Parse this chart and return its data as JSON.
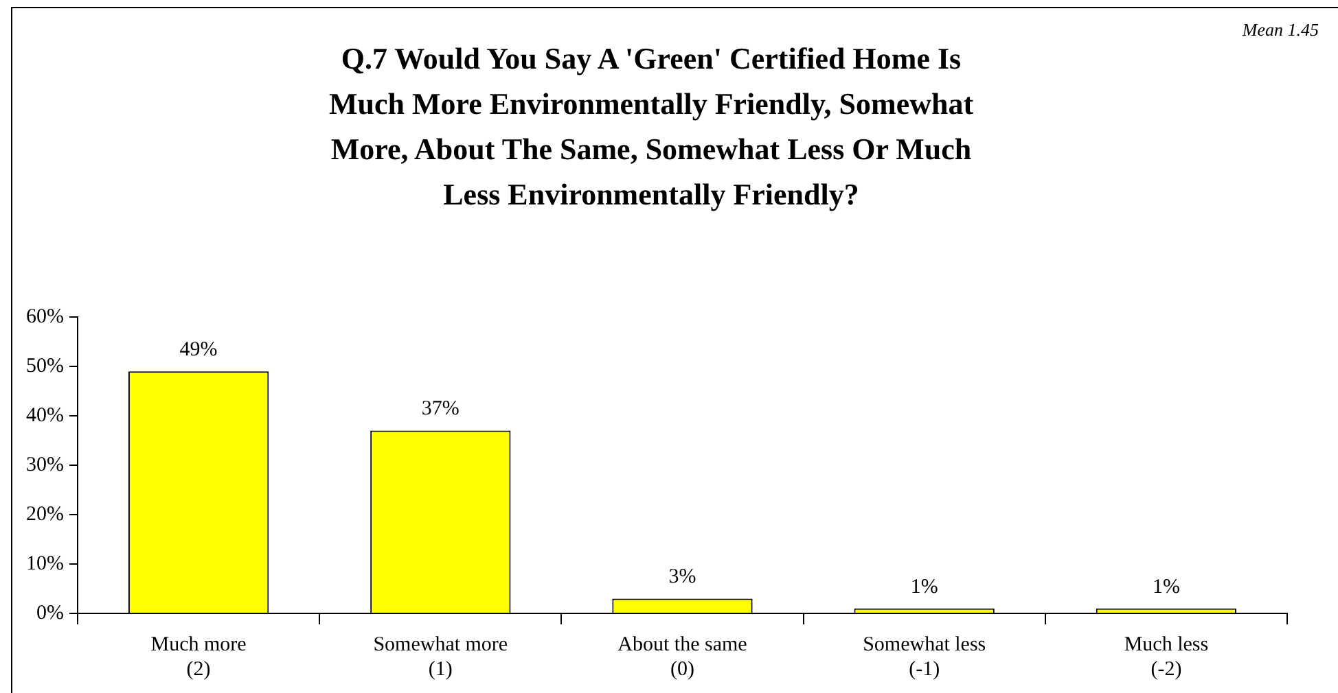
{
  "chart_data": {
    "type": "bar",
    "title": "Q.7  Would You Say A 'Green' Certified Home Is Much More Environmentally Friendly, Somewhat More, About The Same, Somewhat Less Or Much Less Environmentally Friendly?",
    "annotations": [
      "Mean 1.45"
    ],
    "categories": [
      "Much more (2)",
      "Somewhat more (1)",
      "About the same (0)",
      "Somewhat less (-1)",
      "Much less (-2)"
    ],
    "values": [
      49,
      37,
      3,
      1,
      1
    ],
    "value_labels": [
      "49%",
      "37%",
      "3%",
      "1%",
      "1%"
    ],
    "color": "#ffff00",
    "ylim": [
      0,
      60
    ],
    "yticks": [
      {
        "value": 0,
        "label": "0%"
      },
      {
        "value": 10,
        "label": "10%"
      },
      {
        "value": 20,
        "label": "20%"
      },
      {
        "value": 30,
        "label": "30%"
      },
      {
        "value": 40,
        "label": "40%"
      },
      {
        "value": 50,
        "label": "50%"
      },
      {
        "value": 60,
        "label": "60%"
      }
    ],
    "grid": false,
    "legend": false
  }
}
